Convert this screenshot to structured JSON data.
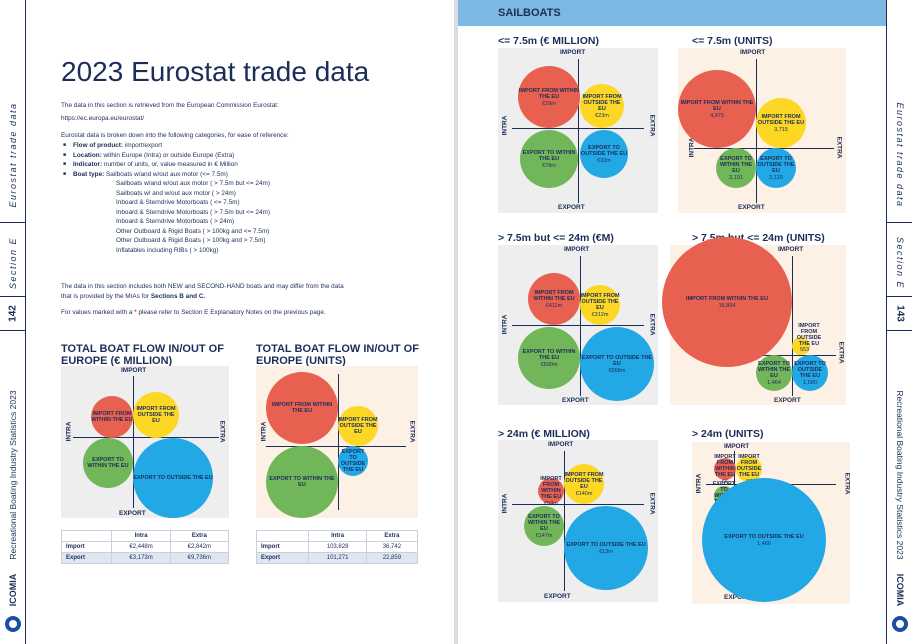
{
  "left": {
    "page_number": "142",
    "side_section": "Section E",
    "side_title": "Eurostat trade data",
    "side_footer": "Recreational Boating Industry Statistics 2023",
    "logo_text": "ICOMIA",
    "title": "2023 Eurostat trade data",
    "intro_line1": "The data in this section is retrieved from the European Commission Eurostat:",
    "intro_link": "https://ec.europa.eu/eurostat/",
    "categories_intro": "Eurostat data is broken down into the following categories, for ease of reference:",
    "bullets": [
      {
        "label": "Flow of product:",
        "text": " import/export"
      },
      {
        "label": "Location:",
        "text": " within Europe (Intra) or outside Europe (Extra)"
      },
      {
        "label": "Indicator:",
        "text": " number of units, or, value measured in € Million"
      },
      {
        "label": "Boat type:",
        "text": " Sailboats w/and w/out aux motor (<= 7.5m)"
      }
    ],
    "boat_types": [
      "Sailboats w/and w/out aux motor ( > 7.5m but <= 24m)",
      "Sailboats w/ and w/out aux motor ( > 24m)",
      "Inboard & Sterndrive Motorboats ( <= 7.5m)",
      "Inboard & Sterndrive Motorboats ( > 7.5m but <= 24m)",
      "Inboard & Sterndrive Motorboats ( > 24m)",
      "Other Outboard & Rigid Boats ( > 100kg and <= 7.5m)",
      "Other Outboard & Rigid Boats ( > 100kg and > 7.5m)",
      "Inflatables including RIBs ( > 100kg)"
    ],
    "note1_part1": "The data in this section includes both NEW and SECOND-HAND boats and may differ from the data",
    "note1_part2": "that is provided by the MIAs for ",
    "note1_bold": "Sections B and C.",
    "note2_part1": "For values marked with a ",
    "note2_star": "*",
    "note2_part2": " please refer to Section E Explanatory Notes on the previous page.",
    "chart_money_title": "TOTAL BOAT FLOW IN/OUT OF EUROPE (€ MILLION)",
    "chart_units_title": "TOTAL BOAT FLOW IN/OUT OF EUROPE (UNITS)",
    "axis_import": "IMPORT",
    "axis_export": "EXPORT",
    "axis_intra": "INTRA",
    "axis_extra": "EXTRA",
    "bubble_import_within": "IMPORT FROM WITHIN THE EU",
    "bubble_import_outside": "IMPORT FROM OUTSIDE THE EU",
    "bubble_export_within": "EXPORT TO WITHIN THE EU",
    "bubble_export_outside": "EXPORT TO OUTSIDE THE EU",
    "table_money": {
      "headers": [
        "",
        "Intra",
        "Extra"
      ],
      "rows": [
        [
          "Import",
          "€2,448m",
          "€2,842m"
        ],
        [
          "Export",
          "€3,173m",
          "€9,736m"
        ]
      ]
    },
    "table_units": {
      "headers": [
        "",
        "Intra",
        "Extra"
      ],
      "rows": [
        [
          "Import",
          "103,828",
          "36,742"
        ],
        [
          "Export",
          "101,271",
          "22,859"
        ]
      ]
    }
  },
  "right": {
    "page_number": "143",
    "side_section": "Section E",
    "side_title": "Eurostat trade data",
    "side_footer": "Recreational Boating Industry Statistics 2023",
    "logo_text": "ICOMIA",
    "banner": "SAILBOATS",
    "charts": [
      {
        "title": "<= 7.5m (€ MILLION)",
        "v_iw": "€29m",
        "v_io": "€23m",
        "v_ew": "€78m",
        "v_eo": "€33m"
      },
      {
        "title": "<= 7.5m (UNITS)",
        "v_iw": "4,975",
        "v_io": "3,715",
        "v_ew": "2,191",
        "v_eo": "2,120"
      },
      {
        "title": "> 7.5m but <= 24m (€M)",
        "v_iw": "€411m",
        "v_io": "€312m",
        "v_ew": "€590m",
        "v_eo": "€958m"
      },
      {
        "title": "> 7.5m but <= 24m (UNITS)",
        "v_iw": "16,894",
        "v_io": "553",
        "v_ew": "1,464",
        "v_eo": "1,680"
      },
      {
        "title": "> 24m (€ MILLION)",
        "v_iw": "€59m",
        "v_io": "€140m",
        "v_ew": "€147m",
        "v_eo": "€13m"
      },
      {
        "title": "> 24m (UNITS)",
        "v_iw": "66",
        "v_io": "67",
        "v_ew": "43",
        "v_eo": "1,466"
      }
    ]
  },
  "colors": {
    "navy": "#1c2d5a",
    "red": "#e8604f",
    "yellow": "#fcd825",
    "green": "#72b65a",
    "blue": "#23a8e6",
    "banner": "#7cb8e4",
    "panel_grey": "#eeeeee",
    "panel_peach": "#fdf0e4"
  },
  "icons": [
    "icomia-logo-icon"
  ]
}
